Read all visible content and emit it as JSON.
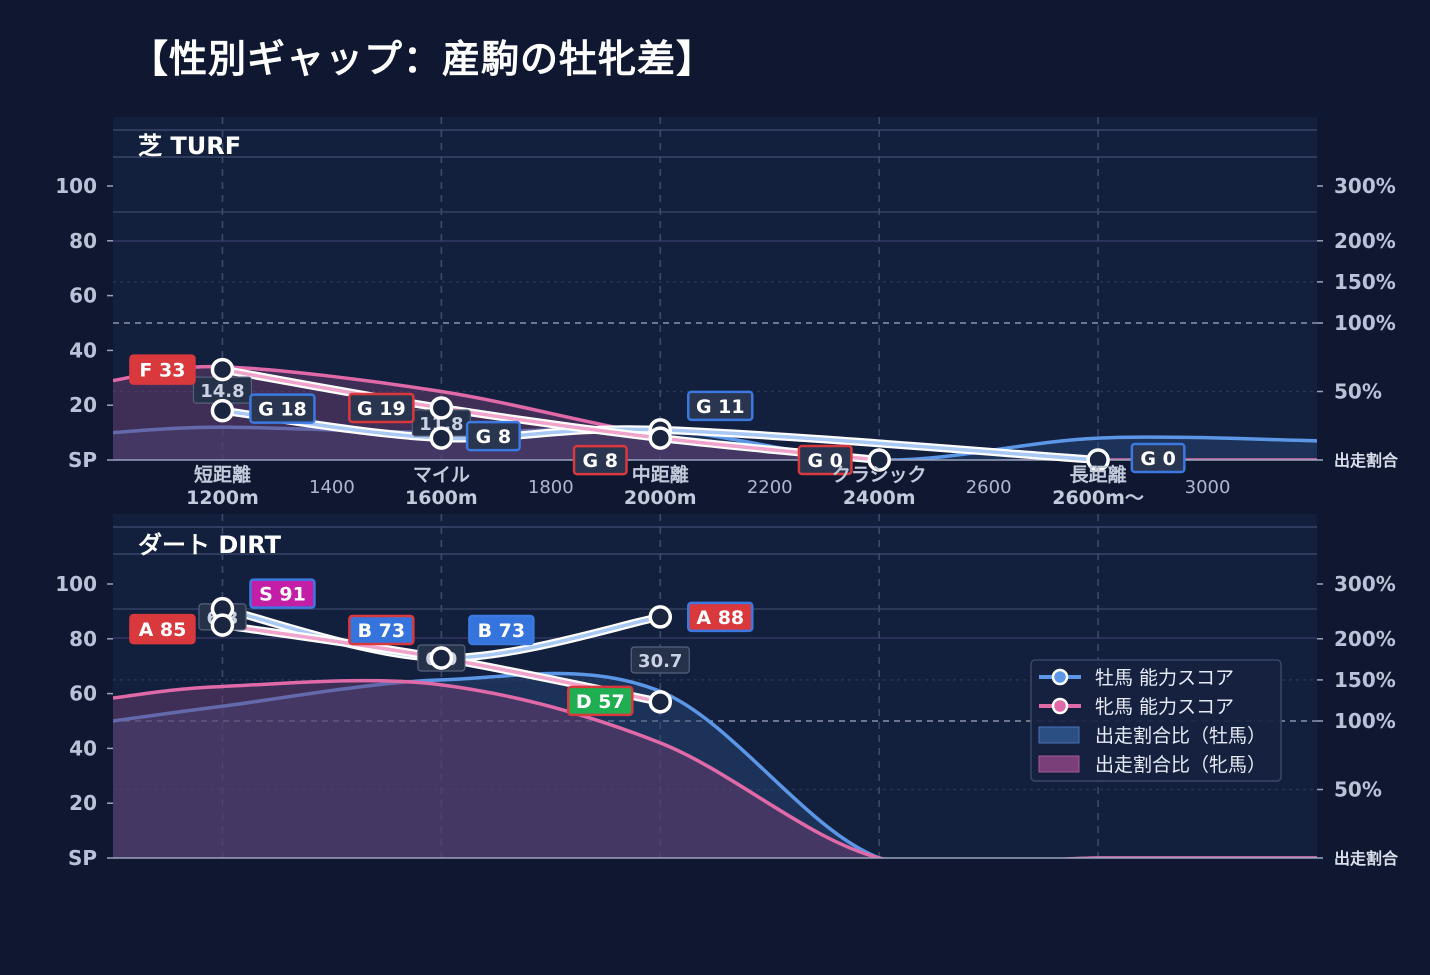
{
  "title": "【性別ギャップ：産駒の牡牝差】",
  "colors": {
    "background": "#0f1830",
    "panel": "#13203d",
    "male": "#5b97e6",
    "female": "#e06aa8",
    "male_fill": "#2a4a7a",
    "female_fill": "#6b3b6e",
    "grade_colors": {
      "S": "#c21fa6",
      "A": "#d9383c",
      "B": "#3574dd",
      "D": "#1fae52",
      "F": "#d9383c",
      "G": "#2a3550"
    }
  },
  "axes": {
    "left_ticks": [
      "SP",
      "20",
      "40",
      "60",
      "80",
      "100"
    ],
    "left_values": [
      0,
      20,
      40,
      60,
      80,
      100
    ],
    "right_ticks": [
      "出走割合",
      "50%",
      "100%",
      "150%",
      "200%",
      "300%"
    ],
    "right_ratio_values": [
      0,
      50,
      100,
      150,
      200,
      300
    ],
    "ylim": [
      0,
      100
    ]
  },
  "x_axis": {
    "numeric_ticks": [
      "1400",
      "1800",
      "2200",
      "2600",
      "3000"
    ],
    "numeric_values": [
      1400,
      1800,
      2200,
      2600,
      3000
    ],
    "categories": [
      {
        "name": "短距離",
        "dist": "1200m",
        "x": 1200
      },
      {
        "name": "マイル",
        "dist": "1600m",
        "x": 1600
      },
      {
        "name": "中距離",
        "dist": "2000m",
        "x": 2000
      },
      {
        "name": "クラシック",
        "dist": "2400m",
        "x": 2400
      },
      {
        "name": "長距離",
        "dist": "2600m〜",
        "x": 2800
      }
    ],
    "xlim": [
      1000,
      3200
    ]
  },
  "legend": {
    "position": "right",
    "items": [
      {
        "label": "牡馬 能力スコア",
        "kind": "line-male"
      },
      {
        "label": "牝馬 能力スコア",
        "kind": "line-female"
      },
      {
        "label": "出走割合比（牡馬）",
        "kind": "fill-male"
      },
      {
        "label": "出走割合比（牝馬）",
        "kind": "fill-female"
      }
    ]
  },
  "chart_data": [
    {
      "type": "line",
      "panel_title": "芝 TURF",
      "male_score": [
        {
          "x": 1200,
          "y": 18,
          "grade": "G",
          "label": "G 18"
        },
        {
          "x": 1600,
          "y": 8,
          "grade": "G",
          "label": "G 8"
        },
        {
          "x": 2000,
          "y": 11,
          "grade": "G",
          "label": "G 11"
        },
        {
          "x": 2800,
          "y": 0,
          "grade": "G",
          "label": "G 0"
        }
      ],
      "female_score": [
        {
          "x": 1200,
          "y": 33,
          "grade": "F",
          "label": "F 33"
        },
        {
          "x": 1600,
          "y": 19,
          "grade": "G",
          "label": "G 19"
        },
        {
          "x": 2000,
          "y": 8,
          "grade": "G",
          "label": "G 8"
        },
        {
          "x": 2400,
          "y": 0,
          "grade": "G",
          "label": "G 0"
        }
      ],
      "ratio_labels": [
        {
          "x": 1200,
          "text": "14.8"
        },
        {
          "x": 1600,
          "text": "11.8"
        }
      ],
      "male_share": {
        "x": [
          1000,
          1200,
          1600,
          2000,
          2400,
          2800,
          3200
        ],
        "y": [
          10,
          12,
          10,
          11,
          0,
          8,
          7
        ]
      },
      "female_share": {
        "x": [
          1000,
          1200,
          1600,
          2000,
          2400,
          2800,
          3200
        ],
        "y": [
          29,
          34,
          25,
          9,
          0,
          0,
          0
        ]
      }
    },
    {
      "type": "line",
      "panel_title": "ダート DIRT",
      "male_score": [
        {
          "x": 1200,
          "y": 91,
          "grade": "S",
          "label": "S 91"
        },
        {
          "x": 1600,
          "y": 73,
          "grade": "B",
          "label": "B 73"
        },
        {
          "x": 2000,
          "y": 88,
          "grade": "A",
          "label": "A 88"
        }
      ],
      "female_score": [
        {
          "x": 1200,
          "y": 85,
          "grade": "A",
          "label": "A 85"
        },
        {
          "x": 1600,
          "y": 73,
          "grade": "B",
          "label": "B 73"
        },
        {
          "x": 2000,
          "y": 57,
          "grade": "D",
          "label": "D 57"
        }
      ],
      "ratio_labels": [
        {
          "x": 1200,
          "text": "6.3"
        },
        {
          "x": 1600,
          "text": "0.0"
        },
        {
          "x": 2000,
          "text": "30.7"
        }
      ],
      "male_share": {
        "x": [
          1000,
          1200,
          1600,
          2000,
          2400,
          2800,
          3200
        ],
        "y": [
          50,
          59,
          75,
          68,
          0,
          0,
          0
        ]
      },
      "female_share": {
        "x": [
          1000,
          1200,
          1600,
          2000,
          2400,
          2800,
          3200
        ],
        "y": [
          64,
          71,
          72,
          42,
          0,
          0,
          0
        ]
      }
    }
  ]
}
